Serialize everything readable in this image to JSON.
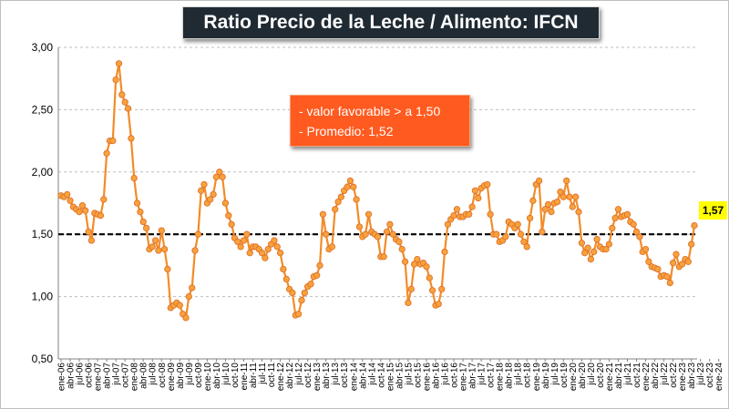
{
  "title": "Ratio Precio de la Leche / Alimento: IFCN",
  "annotation": {
    "line1": "- valor favorable > a 1,50",
    "line2": "- Promedio: 1,52"
  },
  "last_value_label": "1,57",
  "colors": {
    "series_line": "#f28c28",
    "marker_fill": "#f7a23c",
    "marker_stroke": "#e0702a",
    "reference_line": "#000000",
    "grid": "#bfbfbf",
    "title_bg": "#1f2a33",
    "annotation_bg": "#ff5a1f",
    "last_label_bg": "#ffff00"
  },
  "chart_data": {
    "type": "line",
    "title": "Ratio Precio de la Leche / Alimento: IFCN",
    "xlabel": "",
    "ylabel": "",
    "ylim": [
      0.5,
      3.0
    ],
    "yticks": [
      0.5,
      1.0,
      1.5,
      2.0,
      2.5,
      3.0
    ],
    "ytick_labels": [
      "0,50",
      "1,00",
      "1,50",
      "2,00",
      "2,50",
      "3,00"
    ],
    "grid": "horizontal dashed",
    "legend": "none",
    "x_tick_labels": [
      "ene-06",
      "abr-06",
      "jul-06",
      "oct-06",
      "ene-07",
      "abr-07",
      "jul-07",
      "oct-07",
      "ene-08",
      "abr-08",
      "jul-08",
      "oct-08",
      "ene-09",
      "abr-09",
      "jul-09",
      "oct-09",
      "ene-10",
      "abr-10",
      "jul-10",
      "oct-10",
      "ene-11",
      "abr-11",
      "jul-11",
      "oct-11",
      "ene-12",
      "abr-12",
      "jul-12",
      "oct-12",
      "ene-13",
      "abr-13",
      "jul-13",
      "oct-13",
      "ene-14",
      "abr-14",
      "jul-14",
      "oct-14",
      "ene-15",
      "abr-15",
      "jul-15",
      "oct-15",
      "ene-16",
      "abr-16",
      "jul-16",
      "oct-16",
      "ene-17",
      "abr-17",
      "jul-17",
      "oct-17",
      "ene-18",
      "abr-18",
      "jul-18",
      "oct-18",
      "ene-19",
      "abr-19",
      "jul-19",
      "oct-19",
      "ene-20",
      "abr-20",
      "jul-20",
      "oct-20",
      "ene-21",
      "abr-21",
      "jul-21",
      "oct-21",
      "ene-22",
      "abr-22",
      "jul-22",
      "oct-22",
      "ene-23",
      "abr-23",
      "jul-23",
      "oct-23",
      "ene-24"
    ],
    "reference_line": 1.5,
    "series": [
      {
        "values": [
          1.81,
          1.8,
          1.82,
          1.77,
          1.72,
          1.7,
          1.68,
          1.73,
          1.69,
          1.52,
          1.45,
          1.67,
          1.66,
          1.65,
          1.78,
          2.15,
          2.25,
          2.25,
          2.74,
          2.87,
          2.62,
          2.56,
          2.51,
          2.27,
          1.95,
          1.75,
          1.68,
          1.6,
          1.55,
          1.38,
          1.4,
          1.45,
          1.37,
          1.53,
          1.38,
          1.22,
          0.91,
          0.93,
          0.95,
          0.93,
          0.86,
          0.83,
          1.0,
          1.07,
          1.37,
          1.5,
          1.85,
          1.9,
          1.75,
          1.78,
          1.82,
          1.96,
          2.0,
          1.96,
          1.75,
          1.65,
          1.58,
          1.47,
          1.44,
          1.4,
          1.45,
          1.5,
          1.35,
          1.4,
          1.4,
          1.38,
          1.35,
          1.31,
          1.38,
          1.42,
          1.45,
          1.4,
          1.35,
          1.22,
          1.14,
          1.06,
          1.03,
          0.85,
          0.86,
          0.97,
          1.03,
          1.08,
          1.1,
          1.16,
          1.17,
          1.25,
          1.66,
          1.5,
          1.38,
          1.4,
          1.7,
          1.76,
          1.8,
          1.85,
          1.88,
          1.93,
          1.88,
          1.78,
          1.56,
          1.48,
          1.5,
          1.66,
          1.52,
          1.5,
          1.48,
          1.32,
          1.32,
          1.52,
          1.58,
          1.5,
          1.46,
          1.44,
          1.38,
          1.28,
          0.95,
          1.06,
          1.26,
          1.3,
          1.26,
          1.27,
          1.24,
          1.15,
          1.05,
          0.93,
          0.94,
          1.06,
          1.36,
          1.58,
          1.62,
          1.65,
          1.7,
          1.64,
          1.64,
          1.66,
          1.66,
          1.72,
          1.85,
          1.79,
          1.87,
          1.89,
          1.9,
          1.66,
          1.5,
          1.5,
          1.44,
          1.45,
          1.48,
          1.6,
          1.58,
          1.55,
          1.58,
          1.5,
          1.44,
          1.4,
          1.63,
          1.77,
          1.9,
          1.93,
          1.52,
          1.7,
          1.74,
          1.68,
          1.75,
          1.76,
          1.84,
          1.8,
          1.93,
          1.8,
          1.72,
          1.8,
          1.68,
          1.43,
          1.35,
          1.39,
          1.3,
          1.36,
          1.46,
          1.4,
          1.38,
          1.38,
          1.42,
          1.55,
          1.63,
          1.7,
          1.64,
          1.65,
          1.66,
          1.6,
          1.58,
          1.52,
          1.48,
          1.36,
          1.38,
          1.28,
          1.24,
          1.23,
          1.22,
          1.16,
          1.17,
          1.16,
          1.11,
          1.27,
          1.34,
          1.24,
          1.26,
          1.3,
          1.28,
          1.42,
          1.57
        ]
      }
    ]
  }
}
